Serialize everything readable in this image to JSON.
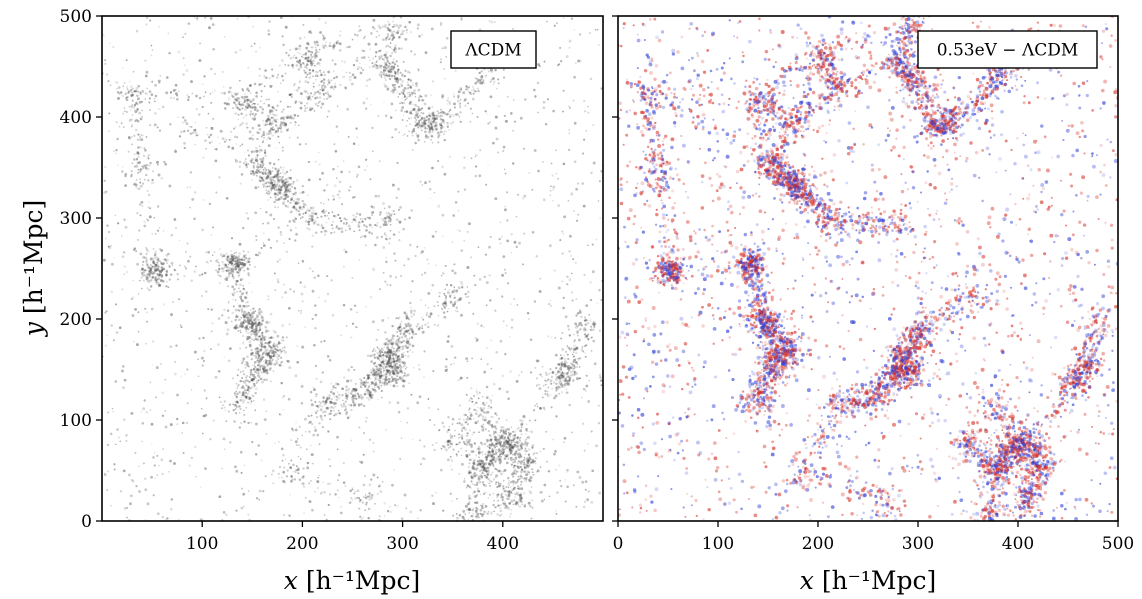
{
  "chart_data": [
    {
      "type": "scatter",
      "panel": "left",
      "legend": "ΛCDM",
      "legend_placement": "top-right",
      "xlabel": {
        "var": "x",
        "unit": "[h⁻¹Mpc]"
      },
      "ylabel": {
        "var": "y",
        "unit": "[h⁻¹Mpc]"
      },
      "xlim": [
        0,
        500
      ],
      "ylim": [
        0,
        500
      ],
      "xticks": [
        100,
        200,
        300,
        400
      ],
      "yticks": [
        0,
        100,
        200,
        300,
        400,
        500
      ],
      "grid": false,
      "point_color": "#4a4a4a",
      "description": "dark-matter halo positions forming a cosmic-web pattern"
    },
    {
      "type": "heatmap",
      "panel": "right",
      "legend": "0.53eV − ΛCDM",
      "legend_placement": "top-right",
      "xlabel": {
        "var": "x",
        "unit": "[h⁻¹Mpc]"
      },
      "xlim": [
        0,
        500
      ],
      "ylim": [
        0,
        500
      ],
      "xticks": [
        0,
        100,
        200,
        300,
        400,
        500
      ],
      "yticks": [
        0,
        100,
        200,
        300,
        400,
        500
      ],
      "grid": false,
      "colormap": {
        "positive": "#d73027",
        "negative": "#2b3bd6",
        "zero": "#ffffff"
      },
      "description": "difference field between massive-neutrino and ΛCDM simulations"
    }
  ]
}
